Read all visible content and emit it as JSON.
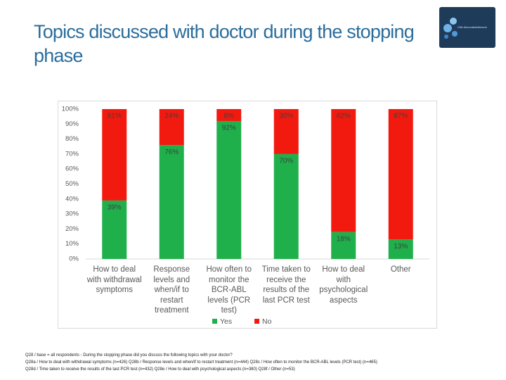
{
  "title": "Topics discussed with doctor during the stopping phase",
  "logo": {
    "text": "CMLAdvocatesNetwork"
  },
  "chart_data": {
    "type": "stacked_bar",
    "categories": [
      "How to deal with withdrawal symptoms",
      "Response levels and when/if to restart treatment",
      "How often to monitor the BCR-ABL levels (PCR test)",
      "Time taken to receive the results of the last PCR test",
      "How to deal with psychological aspects",
      "Other"
    ],
    "series": [
      {
        "name": "Yes",
        "color": "#1fb04b",
        "values": [
          39,
          76,
          92,
          70,
          18,
          13
        ],
        "value_labels": [
          "39%",
          "76%",
          "92%",
          "70%",
          "18%",
          "13%"
        ]
      },
      {
        "name": "No",
        "color": "#f21a0f",
        "values": [
          61,
          24,
          8,
          30,
          82,
          87
        ],
        "value_labels": [
          "61%",
          "24%",
          "8%",
          "30%",
          "82%",
          "87%"
        ]
      }
    ],
    "ylim": [
      0,
      100
    ],
    "yticks": [
      {
        "value": 0,
        "label": "0%"
      },
      {
        "value": 10,
        "label": "10%"
      },
      {
        "value": 20,
        "label": "20%"
      },
      {
        "value": 30,
        "label": "30%"
      },
      {
        "value": 40,
        "label": "40%"
      },
      {
        "value": 50,
        "label": "50%"
      },
      {
        "value": 60,
        "label": "60%"
      },
      {
        "value": 70,
        "label": "70%"
      },
      {
        "value": 80,
        "label": "80%"
      },
      {
        "value": 90,
        "label": "90%"
      },
      {
        "value": 100,
        "label": "100%"
      }
    ],
    "grid": false,
    "legend": "bottom"
  },
  "footnote": [
    "Q28 / base = all respondents - During the stopping phase did you discuss the following topics with your doctor?",
    "Q28a / How to deal with withdrawal symptoms (n=426) Q28b / Response levels and when/if to restart treatment (n=444) Q28c / How often to monitor the BCR-ABL levels (PCR test) (n=465)",
    "Q28d / Time taken to receive the results of the last PCR test (n=432) Q28e / How to deal with psychological aspects (n=380) Q28f / Other (n=53)"
  ]
}
